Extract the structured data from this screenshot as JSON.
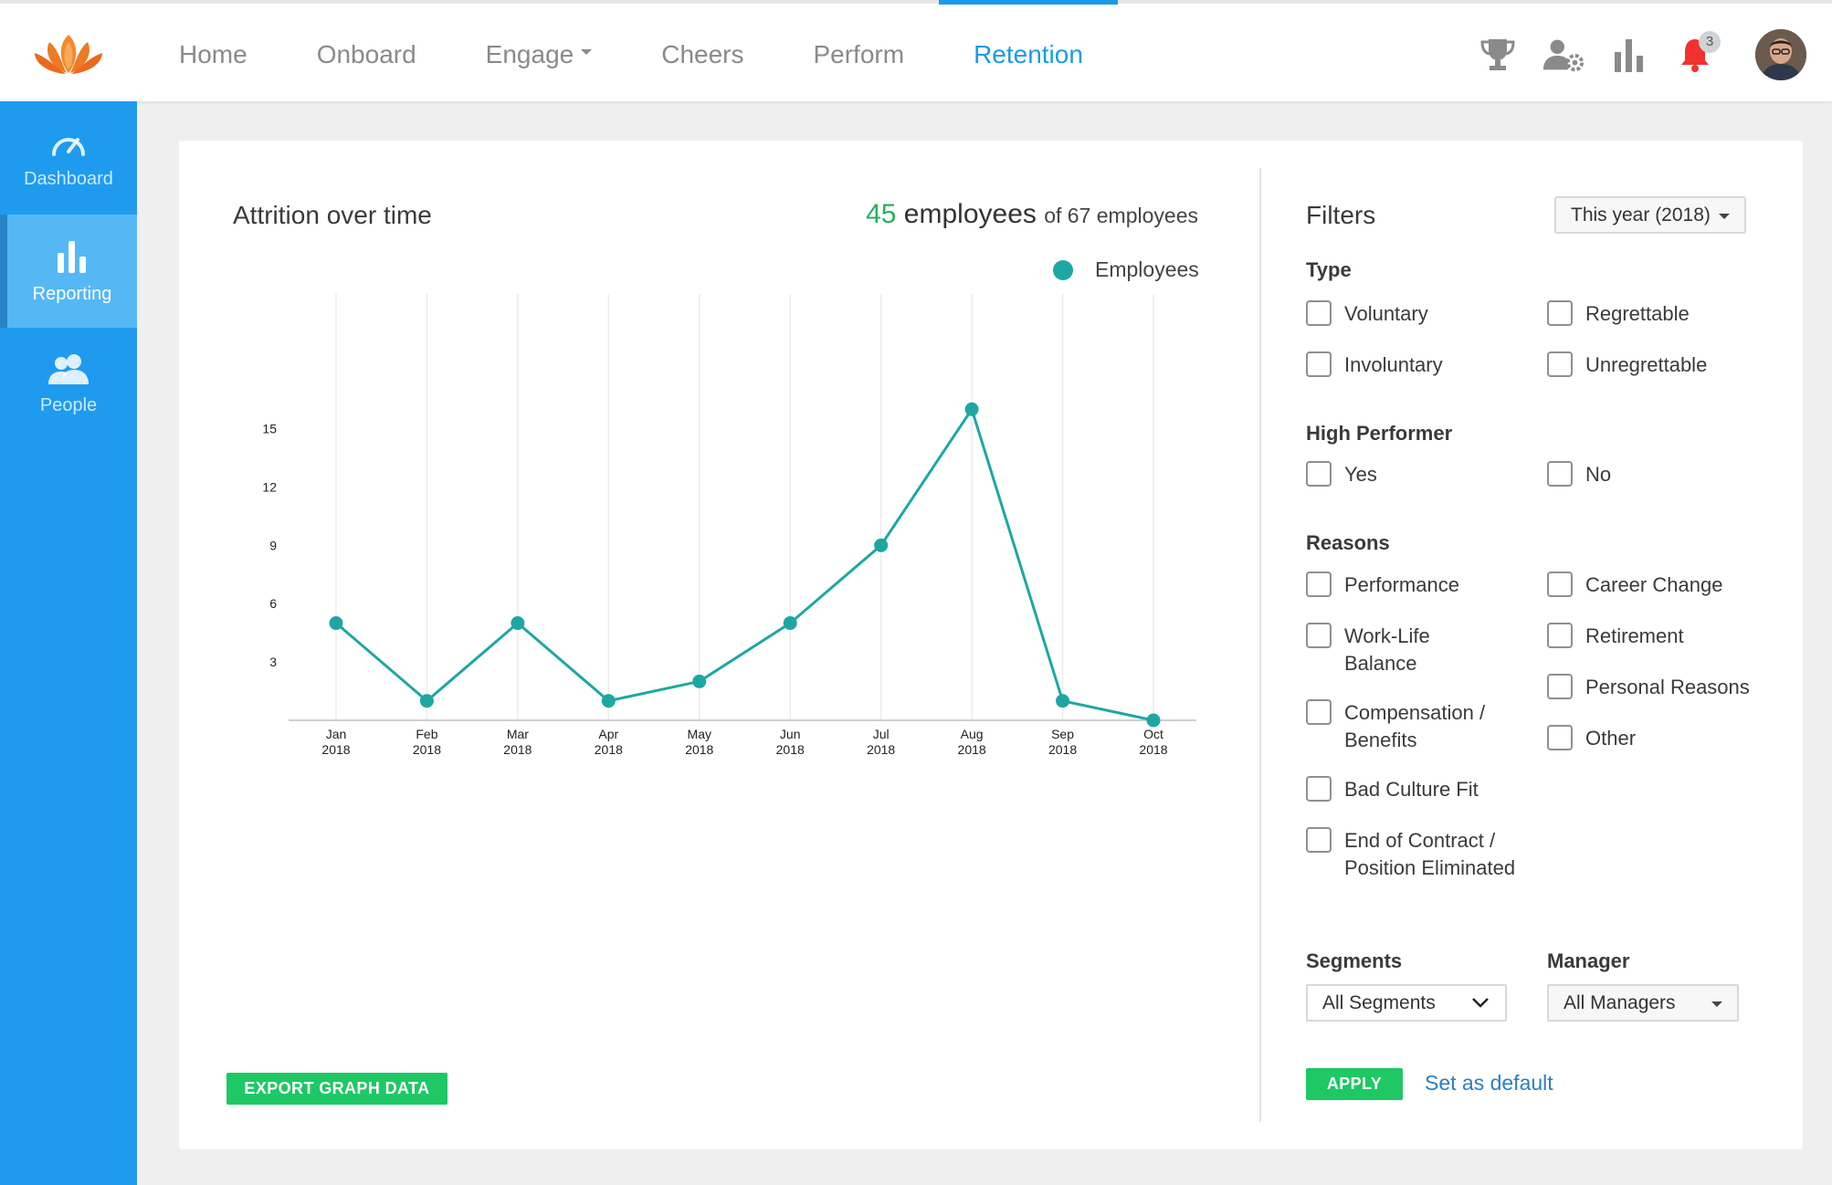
{
  "nav": {
    "items": [
      {
        "label": "Home",
        "name": "nav-home"
      },
      {
        "label": "Onboard",
        "name": "nav-onboard"
      },
      {
        "label": "Engage",
        "name": "nav-engage"
      },
      {
        "label": "Cheers",
        "name": "nav-cheers"
      },
      {
        "label": "Perform",
        "name": "nav-perform"
      },
      {
        "label": "Retention",
        "name": "nav-retention"
      }
    ],
    "active": "Retention",
    "notification_count": "3",
    "icons": [
      "trophy-icon",
      "user-settings-icon",
      "bar-chart-icon",
      "bell-icon"
    ]
  },
  "sidebar": {
    "items": [
      {
        "label": "Dashboard",
        "icon": "speedometer-icon"
      },
      {
        "label": "Reporting",
        "icon": "bar-chart-icon"
      },
      {
        "label": "People",
        "icon": "people-icon"
      }
    ],
    "active": "Reporting"
  },
  "chart": {
    "title": "Attrition over time",
    "count_number": "45",
    "count_unit": " employees ",
    "count_total": "of 67 employees",
    "legend_label": "Employees",
    "export_label": "EXPORT GRAPH DATA"
  },
  "chart_data": {
    "type": "line",
    "categories": [
      "Jan 2018",
      "Feb 2018",
      "Mar 2018",
      "Apr 2018",
      "May 2018",
      "Jun 2018",
      "Jul 2018",
      "Aug 2018",
      "Sep 2018",
      "Oct 2018"
    ],
    "series": [
      {
        "name": "Employees",
        "values": [
          5,
          1,
          5,
          1,
          2,
          5,
          9,
          16,
          1,
          0
        ]
      }
    ],
    "ylim": [
      0,
      17
    ],
    "yticks": [
      3,
      6,
      9,
      12,
      15
    ],
    "xlabel": "",
    "ylabel": "",
    "grid": "vertical",
    "legend": "top-right",
    "color": "#1ea7a2"
  },
  "filters": {
    "title": "Filters",
    "period": "This year (2018)",
    "type_label": "Type",
    "type_options": [
      "Voluntary",
      "Regrettable",
      "Involuntary",
      "Unregrettable"
    ],
    "high_performer_label": "High Performer",
    "high_performer_options": [
      "Yes",
      "No"
    ],
    "reasons_label": "Reasons",
    "reasons_left": [
      "Performance",
      "Work-Life Balance",
      "Compensation / Benefits",
      "Bad Culture Fit",
      "End of Contract / Position Eliminated"
    ],
    "reasons_right": [
      "Career Change",
      "Retirement",
      "Personal Reasons",
      "Other"
    ],
    "segments_label": "Segments",
    "segments_value": "All Segments",
    "manager_label": "Manager",
    "manager_value": "All Managers",
    "apply_label": "APPLY",
    "default_label": "Set as default"
  },
  "colors": {
    "accent": "#1a9be6",
    "sidebar": "#1e9bef",
    "green": "#1ec864",
    "line": "#1ea7a2"
  }
}
